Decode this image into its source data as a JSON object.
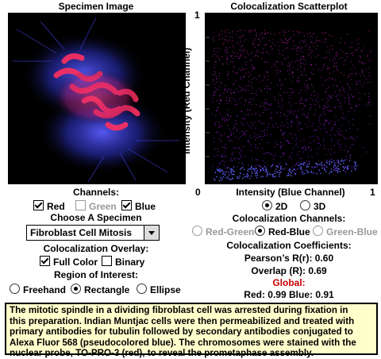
{
  "specimen": {
    "title": "Specimen Image"
  },
  "scatter": {
    "title": "Colocalization Scatterplot",
    "ylabel": "Intensity (Red Channel)",
    "xlabel": "Intensity (Blue Channel)",
    "x_min": "0",
    "x_max": "1",
    "y_max": "1",
    "modes": [
      {
        "label": "2D",
        "checked": true
      },
      {
        "label": "3D",
        "checked": false
      }
    ]
  },
  "channels": {
    "title": "Channels:",
    "items": [
      {
        "label": "Red",
        "checked": true,
        "enabled": true
      },
      {
        "label": "Green",
        "checked": false,
        "enabled": false
      },
      {
        "label": "Blue",
        "checked": true,
        "enabled": true
      }
    ]
  },
  "specimen_select": {
    "title": "Choose A Specimen",
    "value": "Fibroblast Cell Mitosis"
  },
  "overlay": {
    "title": "Colocalization Overlay:",
    "items": [
      {
        "label": "Full Color",
        "checked": true
      },
      {
        "label": "Binary",
        "checked": false
      }
    ]
  },
  "roi": {
    "title": "Region of Interest:",
    "items": [
      {
        "label": "Freehand",
        "checked": false
      },
      {
        "label": "Rectangle",
        "checked": true
      },
      {
        "label": "Ellipse",
        "checked": false
      }
    ]
  },
  "coloc_channels": {
    "title": "Colocalization Channels:",
    "items": [
      {
        "label": "Red-Green",
        "checked": false,
        "enabled": false
      },
      {
        "label": "Red-Blue",
        "checked": true,
        "enabled": true
      },
      {
        "label": "Green-Blue",
        "checked": false,
        "enabled": false
      }
    ]
  },
  "coefficients": {
    "title": "Colocalization Coefficients:",
    "pearson": "Pearson’s R(r): 0.60",
    "overlap": "Overlap (R): 0.69",
    "global_label": "Global:",
    "global_values": "Red: 0.99 Blue: 0.91"
  },
  "caption": {
    "lines": [
      "The mitotic spindle in a dividing fibroblast cell was arrested during fixation in",
      "this preparation.  Indian Muntjac cells were then permeabilized and treated with",
      "primary antibodies for tubulin followed by secondary antibodies conjugated to",
      "Alexa Fluor 568 (pseudocolored blue).  The chromosomes were stained with the",
      "nuclear probe, TO-PRO-3 (red), to reveal the prometaphase assembly."
    ]
  },
  "colors": {
    "caption_bg": "#ffffcc",
    "global_label": "#cc0000"
  },
  "icons": {
    "dropdown": "chevron-down-icon"
  }
}
